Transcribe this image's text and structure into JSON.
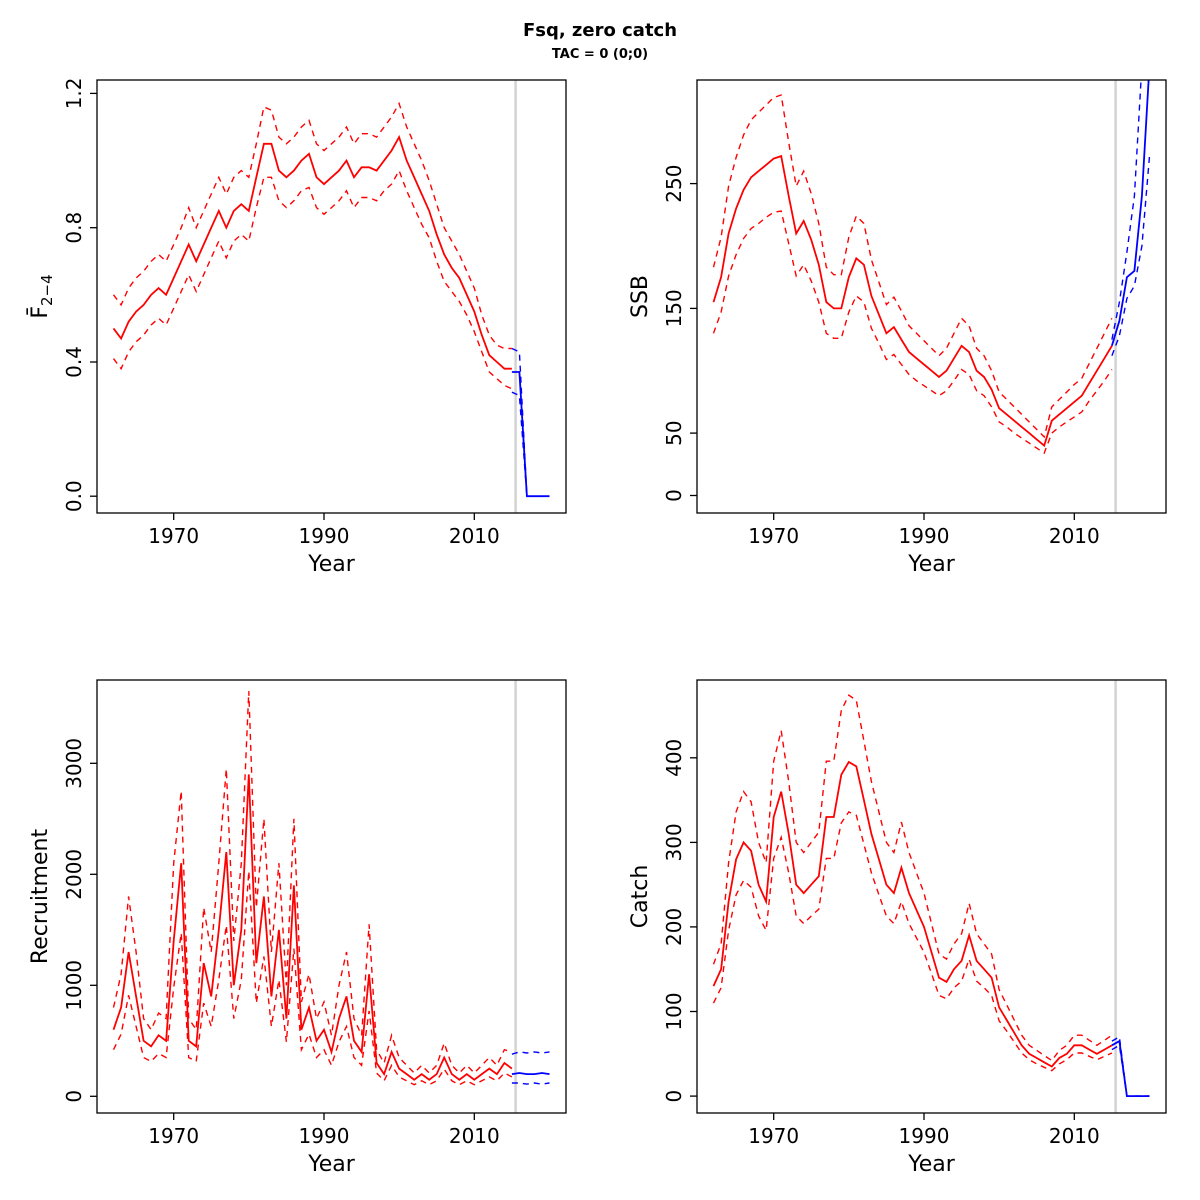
{
  "title": "Fsq, zero catch",
  "subtitle": "TAC = 0 (0;0)",
  "colors": {
    "red": "#FF0000",
    "blue": "#0000FF",
    "gray": "#D3D3D3",
    "axis": "#000000",
    "background": "#FFFFFF"
  },
  "years_historical": [
    1962,
    1963,
    1964,
    1965,
    1966,
    1967,
    1968,
    1969,
    1970,
    1971,
    1972,
    1973,
    1974,
    1975,
    1976,
    1977,
    1978,
    1979,
    1980,
    1981,
    1982,
    1983,
    1984,
    1985,
    1986,
    1987,
    1988,
    1989,
    1990,
    1991,
    1992,
    1993,
    1994,
    1995,
    1996,
    1997,
    1998,
    1999,
    2000,
    2001,
    2002,
    2003,
    2004,
    2005,
    2006,
    2007,
    2008,
    2009,
    2010,
    2011,
    2012,
    2013,
    2014,
    2015
  ],
  "years_forecast": [
    2015,
    2016,
    2017,
    2018,
    2019,
    2020
  ],
  "chart_data": [
    {
      "id": "fbar",
      "type": "line",
      "xlabel": "Year",
      "ylabel": "F̄",
      "ylabel_sub": "2−4",
      "xlim": [
        1959.8,
        2022.2
      ],
      "ylim": [
        -0.05,
        1.24
      ],
      "xticks": [
        1970,
        1990,
        2010
      ],
      "yticks": [
        0,
        0.4,
        0.8,
        1.2
      ],
      "ytick_labels": [
        "0.0",
        "0.4",
        "0.8",
        "1.2"
      ],
      "vline": 2015.5,
      "red": {
        "mean": [
          0.5,
          0.47,
          0.52,
          0.55,
          0.57,
          0.6,
          0.62,
          0.6,
          0.65,
          0.7,
          0.75,
          0.7,
          0.75,
          0.8,
          0.85,
          0.8,
          0.85,
          0.87,
          0.85,
          0.95,
          1.05,
          1.05,
          0.97,
          0.95,
          0.97,
          1.0,
          1.02,
          0.95,
          0.93,
          0.95,
          0.97,
          1.0,
          0.95,
          0.98,
          0.98,
          0.97,
          1.0,
          1.03,
          1.07,
          1.0,
          0.95,
          0.9,
          0.85,
          0.78,
          0.72,
          0.68,
          0.65,
          0.6,
          0.55,
          0.48,
          0.42,
          0.4,
          0.38,
          0.38
        ],
        "lower": [
          0.41,
          0.38,
          0.43,
          0.46,
          0.48,
          0.51,
          0.53,
          0.51,
          0.56,
          0.61,
          0.66,
          0.61,
          0.66,
          0.71,
          0.76,
          0.71,
          0.76,
          0.78,
          0.76,
          0.86,
          0.95,
          0.95,
          0.88,
          0.86,
          0.88,
          0.91,
          0.92,
          0.86,
          0.84,
          0.86,
          0.88,
          0.91,
          0.86,
          0.89,
          0.89,
          0.88,
          0.91,
          0.93,
          0.97,
          0.91,
          0.86,
          0.81,
          0.77,
          0.7,
          0.64,
          0.61,
          0.58,
          0.54,
          0.49,
          0.43,
          0.37,
          0.35,
          0.33,
          0.32
        ],
        "upper": [
          0.6,
          0.57,
          0.62,
          0.65,
          0.67,
          0.7,
          0.72,
          0.7,
          0.75,
          0.8,
          0.86,
          0.8,
          0.85,
          0.9,
          0.95,
          0.9,
          0.95,
          0.97,
          0.95,
          1.05,
          1.16,
          1.15,
          1.07,
          1.05,
          1.07,
          1.1,
          1.12,
          1.05,
          1.03,
          1.05,
          1.07,
          1.1,
          1.05,
          1.08,
          1.08,
          1.07,
          1.1,
          1.13,
          1.17,
          1.1,
          1.05,
          1.0,
          0.94,
          0.87,
          0.8,
          0.76,
          0.72,
          0.67,
          0.62,
          0.54,
          0.48,
          0.45,
          0.44,
          0.44
        ]
      },
      "blue": {
        "mean": [
          0.37,
          0.37,
          0,
          0,
          0,
          0
        ],
        "lower": [
          0.31,
          0.3,
          0,
          0,
          0,
          0
        ],
        "upper": [
          0.44,
          0.43,
          0,
          0,
          0,
          0
        ]
      }
    },
    {
      "id": "ssb",
      "type": "line",
      "xlabel": "Year",
      "ylabel": "SSB",
      "xlim": [
        1959.8,
        2022.2
      ],
      "ylim": [
        -14,
        333
      ],
      "xticks": [
        1970,
        1990,
        2010
      ],
      "yticks": [
        0,
        50,
        150,
        250
      ],
      "ytick_labels": [
        "0",
        "50",
        "150",
        "250"
      ],
      "vline": 2015.5,
      "red": {
        "mean": [
          155,
          175,
          210,
          230,
          245,
          255,
          260,
          265,
          270,
          272,
          240,
          210,
          220,
          205,
          185,
          155,
          150,
          150,
          175,
          190,
          185,
          160,
          145,
          130,
          135,
          125,
          115,
          110,
          105,
          100,
          95,
          100,
          110,
          120,
          115,
          100,
          95,
          85,
          70,
          65,
          60,
          55,
          50,
          45,
          40,
          60,
          65,
          70,
          75,
          80,
          90,
          100,
          110,
          120
        ],
        "lower": [
          130,
          147,
          176,
          193,
          206,
          214,
          218,
          223,
          227,
          228,
          202,
          176,
          185,
          172,
          155,
          130,
          126,
          126,
          147,
          160,
          155,
          134,
          122,
          109,
          113,
          105,
          97,
          92,
          88,
          84,
          80,
          84,
          92,
          101,
          97,
          84,
          80,
          71,
          59,
          55,
          50,
          46,
          42,
          38,
          34,
          50,
          55,
          59,
          63,
          67,
          76,
          84,
          92,
          101
        ],
        "upper": [
          183,
          207,
          248,
          271,
          289,
          301,
          307,
          313,
          319,
          321,
          283,
          248,
          260,
          242,
          218,
          183,
          177,
          177,
          207,
          224,
          218,
          189,
          171,
          153,
          159,
          148,
          136,
          130,
          124,
          118,
          112,
          118,
          130,
          142,
          136,
          118,
          112,
          100,
          83,
          77,
          71,
          65,
          59,
          53,
          47,
          71,
          77,
          83,
          89,
          94,
          106,
          118,
          130,
          142
        ]
      },
      "blue": {
        "mean": [
          120,
          140,
          175,
          180,
          240,
          345
        ],
        "lower": [
          112,
          128,
          158,
          168,
          200,
          272
        ],
        "upper": [
          125,
          155,
          195,
          240,
          345,
          430
        ]
      }
    },
    {
      "id": "recruitment",
      "type": "line",
      "xlabel": "Year",
      "ylabel": "Recruitment",
      "xlim": [
        1959.8,
        2022.2
      ],
      "ylim": [
        -150,
        3750
      ],
      "xticks": [
        1970,
        1990,
        2010
      ],
      "yticks": [
        0,
        1000,
        2000,
        3000
      ],
      "ytick_labels": [
        "0",
        "1000",
        "2000",
        "3000"
      ],
      "vline": 2015.5,
      "red": {
        "mean": [
          600,
          800,
          1300,
          900,
          500,
          450,
          550,
          500,
          1400,
          2100,
          500,
          450,
          1200,
          900,
          1500,
          2200,
          1000,
          1500,
          2900,
          1200,
          1800,
          900,
          1500,
          700,
          1900,
          600,
          800,
          500,
          600,
          400,
          700,
          900,
          500,
          400,
          1100,
          300,
          200,
          400,
          250,
          200,
          150,
          200,
          150,
          200,
          350,
          200,
          150,
          200,
          150,
          200,
          250,
          200,
          300,
          250
        ],
        "lower": [
          420,
          560,
          910,
          630,
          350,
          315,
          385,
          350,
          980,
          1470,
          350,
          315,
          840,
          630,
          1050,
          1540,
          700,
          1050,
          2030,
          840,
          1260,
          630,
          1050,
          490,
          1330,
          420,
          560,
          350,
          420,
          280,
          490,
          630,
          350,
          280,
          770,
          210,
          140,
          280,
          175,
          140,
          105,
          140,
          105,
          140,
          245,
          140,
          105,
          140,
          105,
          140,
          175,
          140,
          210,
          175
        ],
        "upper": [
          800,
          1100,
          1800,
          1300,
          700,
          600,
          750,
          700,
          2100,
          2750,
          700,
          600,
          1700,
          1300,
          2100,
          2950,
          1400,
          2100,
          3650,
          1700,
          2500,
          1300,
          2100,
          1000,
          2500,
          850,
          1100,
          700,
          850,
          550,
          1000,
          1300,
          700,
          550,
          1550,
          420,
          300,
          550,
          350,
          280,
          210,
          280,
          210,
          280,
          480,
          280,
          210,
          280,
          210,
          280,
          350,
          280,
          420,
          400
        ]
      },
      "blue": {
        "mean": [
          200,
          210,
          200,
          200,
          210,
          200
        ],
        "lower": [
          120,
          120,
          110,
          120,
          110,
          120
        ],
        "upper": [
          380,
          400,
          390,
          400,
          390,
          400
        ]
      }
    },
    {
      "id": "catch",
      "type": "line",
      "xlabel": "Year",
      "ylabel": "Catch",
      "xlim": [
        1959.8,
        2022.2
      ],
      "ylim": [
        -20,
        492
      ],
      "xticks": [
        1970,
        1990,
        2010
      ],
      "yticks": [
        0,
        100,
        200,
        300,
        400
      ],
      "ytick_labels": [
        "0",
        "100",
        "200",
        "300",
        "400"
      ],
      "vline": 2015.5,
      "red": {
        "mean": [
          130,
          150,
          230,
          280,
          300,
          290,
          250,
          230,
          330,
          360,
          310,
          250,
          240,
          250,
          260,
          330,
          330,
          380,
          395,
          390,
          350,
          310,
          280,
          250,
          240,
          270,
          240,
          220,
          200,
          170,
          140,
          135,
          150,
          160,
          190,
          160,
          150,
          140,
          105,
          90,
          75,
          60,
          50,
          45,
          40,
          35,
          45,
          50,
          60,
          60,
          55,
          50,
          55,
          60
        ],
        "lower": [
          110,
          128,
          196,
          238,
          255,
          247,
          213,
          196,
          281,
          306,
          264,
          213,
          204,
          213,
          221,
          281,
          281,
          323,
          336,
          332,
          298,
          264,
          238,
          213,
          204,
          230,
          204,
          187,
          170,
          145,
          119,
          115,
          128,
          136,
          162,
          136,
          128,
          119,
          89,
          77,
          64,
          51,
          43,
          38,
          34,
          30,
          38,
          43,
          51,
          51,
          47,
          43,
          47,
          51
        ],
        "upper": [
          156,
          180,
          276,
          336,
          360,
          348,
          300,
          276,
          396,
          432,
          372,
          300,
          288,
          300,
          312,
          396,
          396,
          456,
          474,
          468,
          420,
          372,
          336,
          300,
          288,
          324,
          288,
          264,
          240,
          204,
          168,
          162,
          180,
          192,
          228,
          192,
          180,
          168,
          126,
          108,
          90,
          72,
          60,
          54,
          48,
          42,
          54,
          60,
          72,
          72,
          66,
          60,
          66,
          72
        ]
      },
      "blue": {
        "mean": [
          60,
          65,
          0,
          0,
          0,
          0
        ],
        "lower": [
          55,
          60,
          0,
          0,
          0,
          0
        ],
        "upper": [
          65,
          70,
          0,
          0,
          0,
          0
        ]
      }
    }
  ]
}
